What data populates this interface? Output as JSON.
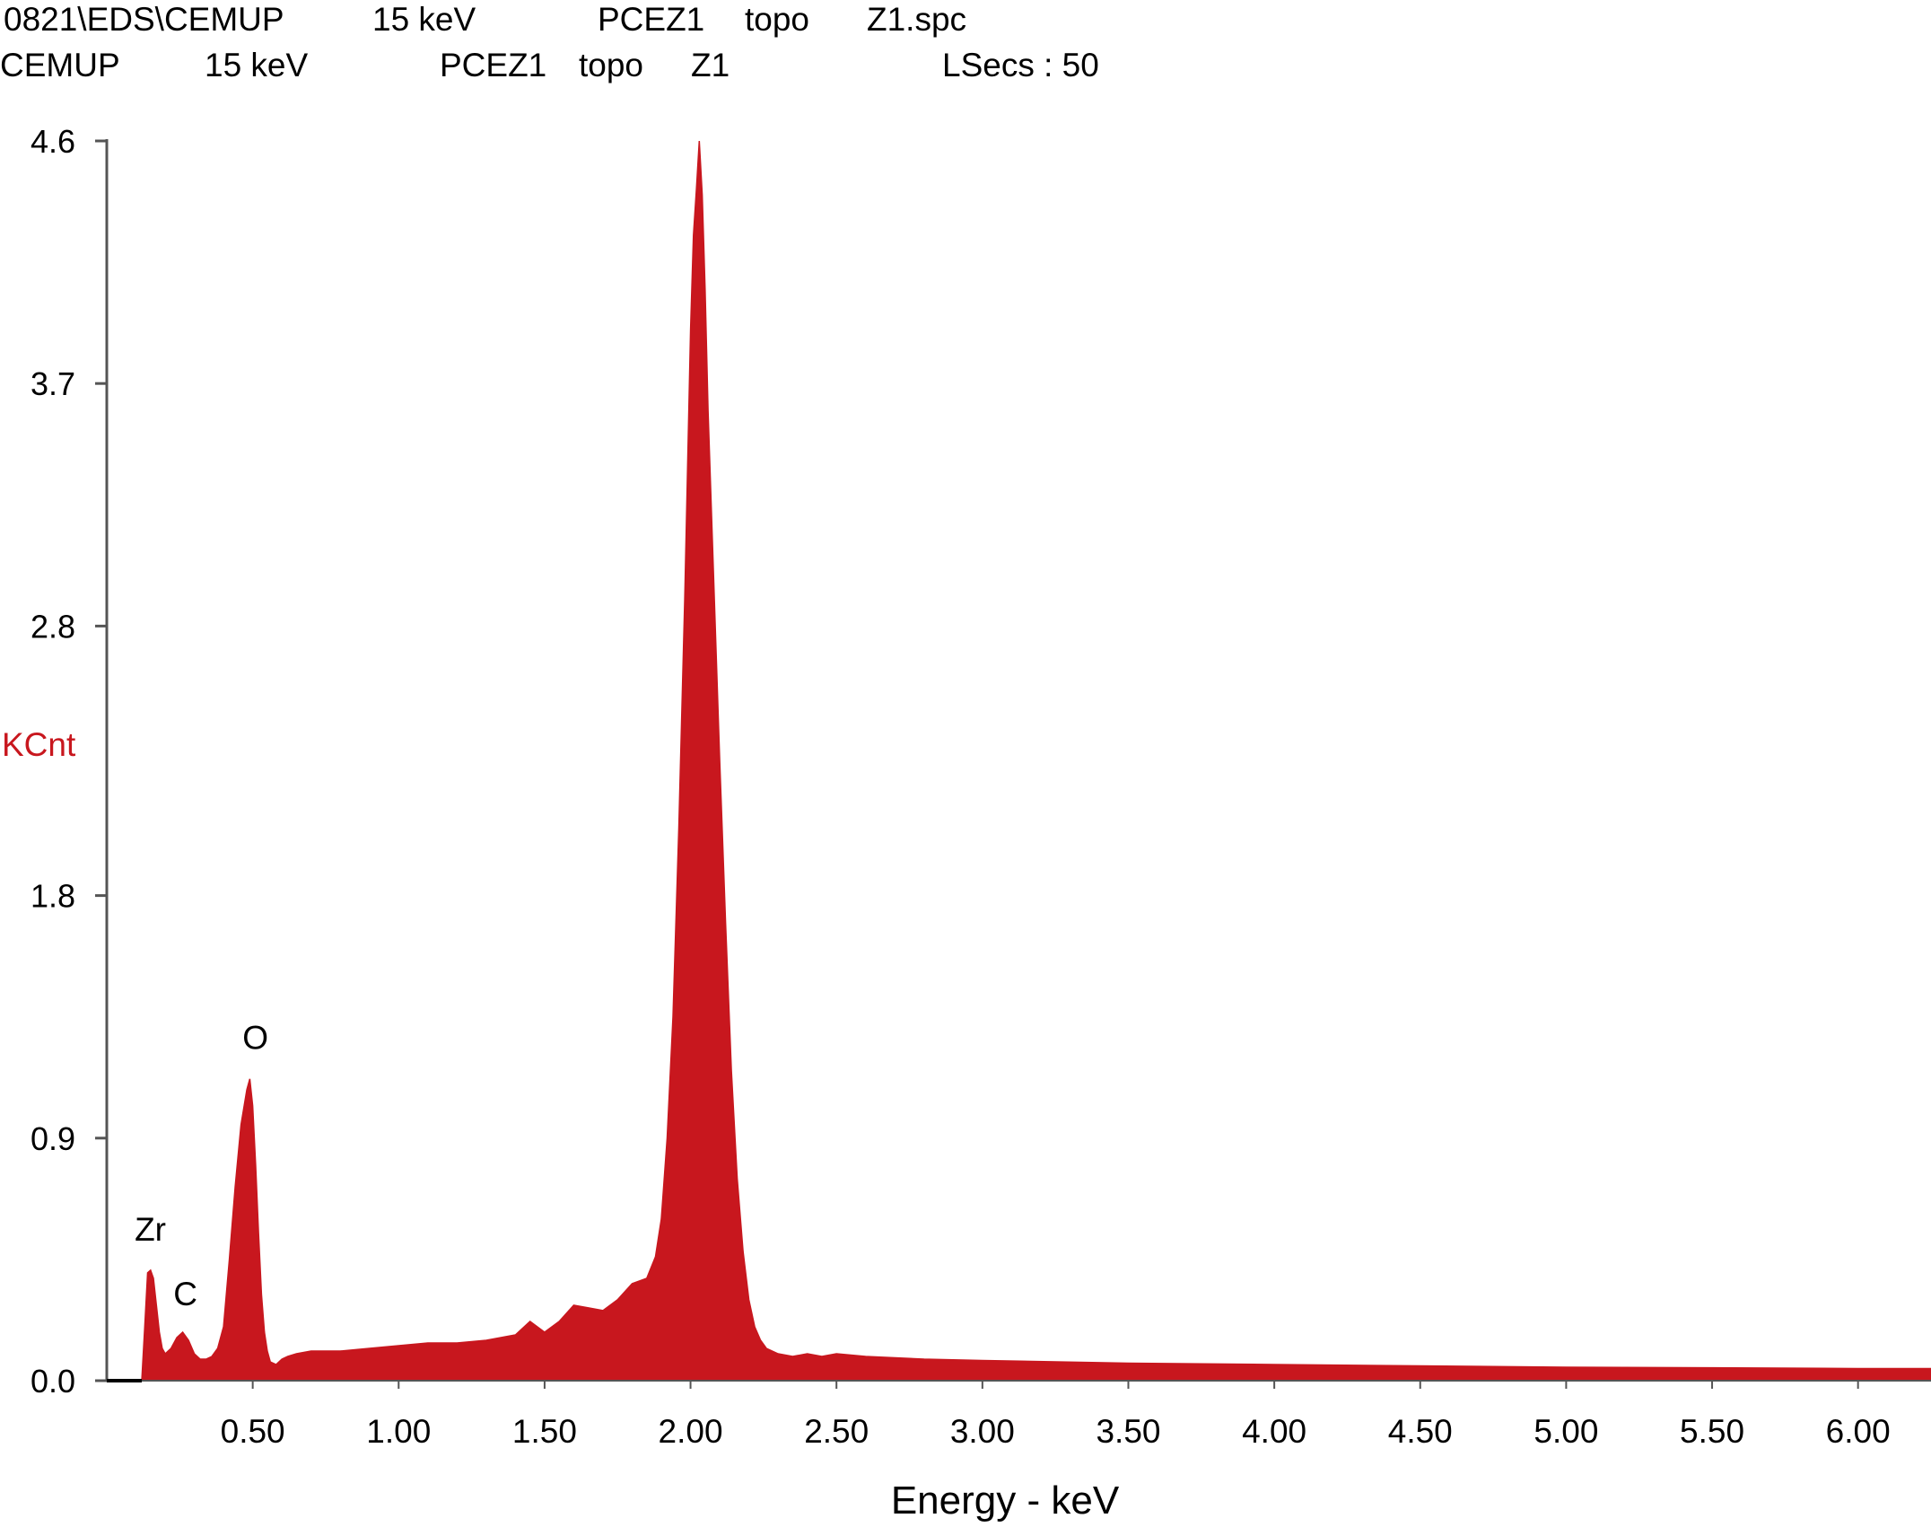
{
  "header": {
    "line1": {
      "path": "0821\\EDS\\CEMUP",
      "voltage": "15 keV",
      "sample": "PCEZ1",
      "mode": "topo",
      "file": "Z1.spc"
    },
    "line2": {
      "lab": "CEMUP",
      "voltage": "15 keV",
      "sample": "PCEZ1",
      "mode": "topo",
      "spot": "Z1",
      "lsecs": "LSecs : 50"
    }
  },
  "chart_data": {
    "type": "area",
    "title": "",
    "xlabel": "Energy - keV",
    "ylabel": "KCnt",
    "xlim": [
      0.0,
      6.25
    ],
    "ylim": [
      0.0,
      4.6
    ],
    "x_ticks": [
      0.5,
      1.0,
      1.5,
      2.0,
      2.5,
      3.0,
      3.5,
      4.0,
      4.5,
      5.0,
      5.5,
      6.0
    ],
    "x_tick_labels": [
      "0.50",
      "1.00",
      "1.50",
      "2.00",
      "2.50",
      "3.00",
      "3.50",
      "4.00",
      "4.50",
      "5.00",
      "5.50",
      "6.00"
    ],
    "y_ticks": [
      0.0,
      0.9,
      1.8,
      2.8,
      3.7,
      4.6
    ],
    "y_tick_labels": [
      "0.0",
      "0.9",
      "1.8",
      "2.8",
      "3.7",
      "4.6"
    ],
    "fill_color": "#c8171e",
    "series": [
      {
        "x": [
          0.12,
          0.13,
          0.14,
          0.15,
          0.16,
          0.17,
          0.18,
          0.19,
          0.2,
          0.22,
          0.24,
          0.26,
          0.28,
          0.3,
          0.32,
          0.34,
          0.36,
          0.38,
          0.4,
          0.42,
          0.44,
          0.46,
          0.48,
          0.49,
          0.5,
          0.51,
          0.52,
          0.53,
          0.54,
          0.55,
          0.56,
          0.58,
          0.6,
          0.62,
          0.65,
          0.7,
          0.8,
          0.9,
          1.0,
          1.1,
          1.2,
          1.3,
          1.4,
          1.45,
          1.5,
          1.55,
          1.6,
          1.65,
          1.7,
          1.75,
          1.8,
          1.85,
          1.88,
          1.9,
          1.92,
          1.94,
          1.96,
          1.98,
          2.0,
          2.01,
          2.02,
          2.03,
          2.04,
          2.05,
          2.06,
          2.08,
          2.1,
          2.12,
          2.14,
          2.16,
          2.18,
          2.2,
          2.22,
          2.24,
          2.26,
          2.3,
          2.35,
          2.4,
          2.45,
          2.5,
          2.6,
          2.8,
          3.0,
          3.5,
          4.0,
          4.5,
          5.0,
          5.5,
          6.0,
          6.25
        ],
        "values": [
          0.0,
          0.2,
          0.4,
          0.41,
          0.38,
          0.28,
          0.18,
          0.12,
          0.1,
          0.12,
          0.16,
          0.18,
          0.15,
          0.1,
          0.08,
          0.08,
          0.09,
          0.12,
          0.2,
          0.45,
          0.72,
          0.95,
          1.08,
          1.12,
          1.02,
          0.8,
          0.55,
          0.32,
          0.18,
          0.11,
          0.07,
          0.06,
          0.08,
          0.09,
          0.1,
          0.11,
          0.11,
          0.12,
          0.13,
          0.14,
          0.14,
          0.15,
          0.17,
          0.22,
          0.18,
          0.22,
          0.28,
          0.27,
          0.26,
          0.3,
          0.36,
          0.38,
          0.46,
          0.6,
          0.9,
          1.35,
          2.05,
          2.9,
          3.9,
          4.25,
          4.42,
          4.6,
          4.4,
          4.05,
          3.6,
          2.95,
          2.3,
          1.7,
          1.15,
          0.75,
          0.48,
          0.3,
          0.2,
          0.15,
          0.12,
          0.1,
          0.09,
          0.1,
          0.09,
          0.1,
          0.09,
          0.08,
          0.075,
          0.065,
          0.06,
          0.055,
          0.05,
          0.048,
          0.045,
          0.045
        ]
      }
    ],
    "annotations": [
      {
        "label": "Zr",
        "x": 0.14,
        "y": 0.52
      },
      {
        "label": "C",
        "x": 0.26,
        "y": 0.28
      },
      {
        "label": "O",
        "x": 0.5,
        "y": 1.23
      }
    ]
  }
}
